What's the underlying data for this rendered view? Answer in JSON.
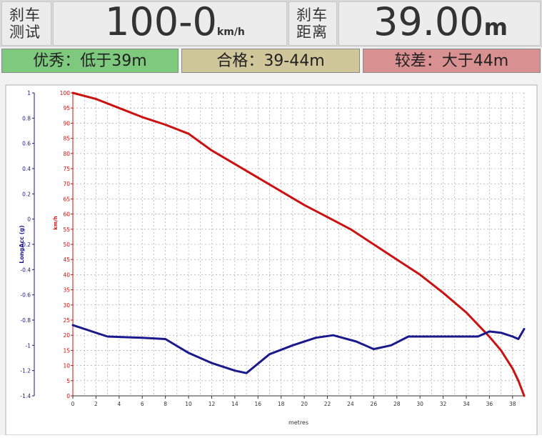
{
  "header": {
    "test_label": "刹车\n测试",
    "test_value": "100-0",
    "test_unit": "km/h",
    "distance_label": "刹车\n距离",
    "distance_value": "39.00",
    "distance_unit": "m"
  },
  "ratings": [
    {
      "label": "优秀：低于39m",
      "color": "#7dc97d"
    },
    {
      "label": "合格：39-44m",
      "color": "#cfc79a"
    },
    {
      "label": "较差：大于44m",
      "color": "#d99090"
    }
  ],
  "chart_data": {
    "type": "line",
    "xlabel": "metres",
    "xlim": [
      0,
      39
    ],
    "xticks": [
      "0",
      "2",
      "4",
      "6",
      "8",
      "10",
      "12",
      "14",
      "16",
      "18",
      "20",
      "22",
      "24",
      "26",
      "28",
      "30",
      "32",
      "34",
      "36",
      "38"
    ],
    "y_left": {
      "label": "LongAcc (g)",
      "color": "#1a1a8c",
      "lim": [
        -1.4,
        1
      ],
      "ticks": [
        "1",
        "0.8",
        "0.6",
        "0.4",
        "0.2",
        "0",
        "-0.2",
        "-0.4",
        "-0.6",
        "-0.8",
        "-1",
        "-1.2",
        "-1.4"
      ]
    },
    "y_right": {
      "label": "km/h",
      "color": "#cc1111",
      "lim": [
        0,
        100
      ],
      "ticks": [
        "100",
        "95",
        "90",
        "85",
        "80",
        "75",
        "70",
        "65",
        "60",
        "55",
        "50",
        "45",
        "40",
        "35",
        "30",
        "25",
        "20",
        "15",
        "10",
        "5",
        "0"
      ]
    },
    "grid": true,
    "series": [
      {
        "axis": "right",
        "color": "#cc1111",
        "x": [
          0,
          2,
          4,
          6,
          8,
          10,
          12,
          14,
          16,
          18,
          20,
          22,
          24,
          26,
          28,
          30,
          32,
          34,
          36,
          37,
          38,
          38.5,
          39
        ],
        "y": [
          100,
          98,
          95,
          92,
          89.5,
          86.5,
          81,
          76.5,
          72,
          67.5,
          63,
          59,
          55,
          50,
          45,
          40,
          34,
          27.5,
          19.5,
          15,
          9,
          5,
          0
        ]
      },
      {
        "axis": "left",
        "color": "#1a1a8c",
        "x": [
          0,
          3,
          6,
          8,
          10,
          12,
          14,
          15,
          17,
          19,
          21,
          22.5,
          24.5,
          26,
          27.5,
          29,
          31,
          33,
          35,
          36,
          37,
          38,
          38.5,
          39
        ],
        "y": [
          -0.84,
          -0.93,
          -0.94,
          -0.95,
          -1.06,
          -1.14,
          -1.2,
          -1.22,
          -1.07,
          -1.0,
          -0.94,
          -0.92,
          -0.97,
          -1.03,
          -1.0,
          -0.93,
          -0.93,
          -0.93,
          -0.93,
          -0.89,
          -0.9,
          -0.93,
          -0.95,
          -0.87
        ]
      }
    ]
  }
}
